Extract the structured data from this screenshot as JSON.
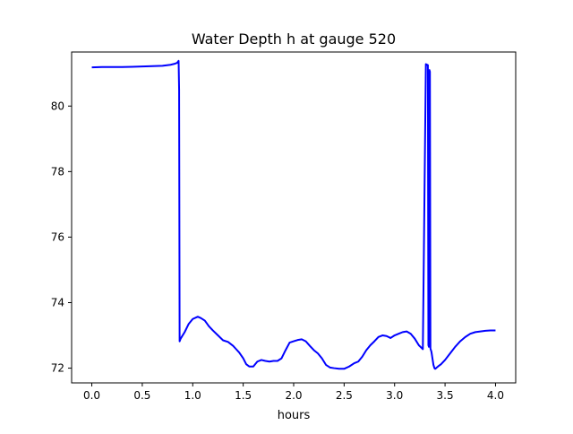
{
  "chart_data": {
    "type": "line",
    "title": "Water Depth h at gauge 520",
    "xlabel": "hours",
    "ylabel": "",
    "xlim": [
      -0.2,
      4.2
    ],
    "ylim": [
      71.55,
      81.65
    ],
    "xticks": [
      0.0,
      0.5,
      1.0,
      1.5,
      2.0,
      2.5,
      3.0,
      3.5,
      4.0
    ],
    "xtick_labels": [
      "0.0",
      "0.5",
      "1.0",
      "1.5",
      "2.0",
      "2.5",
      "3.0",
      "3.5",
      "4.0"
    ],
    "yticks": [
      72,
      74,
      76,
      78,
      80
    ],
    "ytick_labels": [
      "72",
      "74",
      "76",
      "78",
      "80"
    ],
    "grid": false,
    "legend": "none",
    "series": [
      {
        "color": "#0000ff",
        "x": [
          0.0,
          0.1,
          0.2,
          0.3,
          0.4,
          0.5,
          0.6,
          0.7,
          0.78,
          0.82,
          0.845,
          0.86,
          0.865,
          0.87,
          0.88,
          0.92,
          0.96,
          1.0,
          1.05,
          1.08,
          1.12,
          1.16,
          1.2,
          1.25,
          1.3,
          1.35,
          1.4,
          1.43,
          1.46,
          1.5,
          1.53,
          1.56,
          1.6,
          1.64,
          1.68,
          1.72,
          1.76,
          1.8,
          1.84,
          1.88,
          1.92,
          1.96,
          2.0,
          2.04,
          2.08,
          2.12,
          2.16,
          2.2,
          2.24,
          2.28,
          2.32,
          2.36,
          2.4,
          2.45,
          2.5,
          2.55,
          2.6,
          2.64,
          2.68,
          2.72,
          2.76,
          2.8,
          2.84,
          2.88,
          2.92,
          2.96,
          3.0,
          3.04,
          3.08,
          3.12,
          3.16,
          3.2,
          3.24,
          3.28,
          3.31,
          3.33,
          3.335,
          3.34,
          3.345,
          3.35,
          3.355,
          3.36,
          3.365,
          3.37,
          3.375,
          3.38,
          3.385,
          3.39,
          3.395,
          3.4,
          3.405,
          3.41,
          3.43,
          3.46,
          3.5,
          3.55,
          3.6,
          3.65,
          3.7,
          3.75,
          3.8,
          3.85,
          3.9,
          3.95,
          4.0
        ],
        "y": [
          81.18,
          81.19,
          81.19,
          81.19,
          81.2,
          81.21,
          81.22,
          81.23,
          81.26,
          81.29,
          81.32,
          81.38,
          80.5,
          72.82,
          72.9,
          73.1,
          73.35,
          73.5,
          73.57,
          73.53,
          73.45,
          73.28,
          73.15,
          73.0,
          72.85,
          72.8,
          72.68,
          72.58,
          72.48,
          72.3,
          72.12,
          72.05,
          72.05,
          72.2,
          72.25,
          72.22,
          72.2,
          72.22,
          72.22,
          72.3,
          72.55,
          72.78,
          72.82,
          72.86,
          72.88,
          72.82,
          72.68,
          72.55,
          72.45,
          72.3,
          72.1,
          72.02,
          72.0,
          71.98,
          71.98,
          72.05,
          72.15,
          72.2,
          72.35,
          72.55,
          72.7,
          72.82,
          72.95,
          73.0,
          72.98,
          72.92,
          73.0,
          73.05,
          73.1,
          73.12,
          73.05,
          72.9,
          72.7,
          72.58,
          81.28,
          81.25,
          72.7,
          72.65,
          81.1,
          81.05,
          72.6,
          72.55,
          72.5,
          72.4,
          72.3,
          72.2,
          72.1,
          72.05,
          72.0,
          71.98,
          71.98,
          72.0,
          72.05,
          72.12,
          72.25,
          72.45,
          72.65,
          72.82,
          72.95,
          73.05,
          73.1,
          73.12,
          73.14,
          73.15,
          73.15
        ]
      }
    ]
  }
}
